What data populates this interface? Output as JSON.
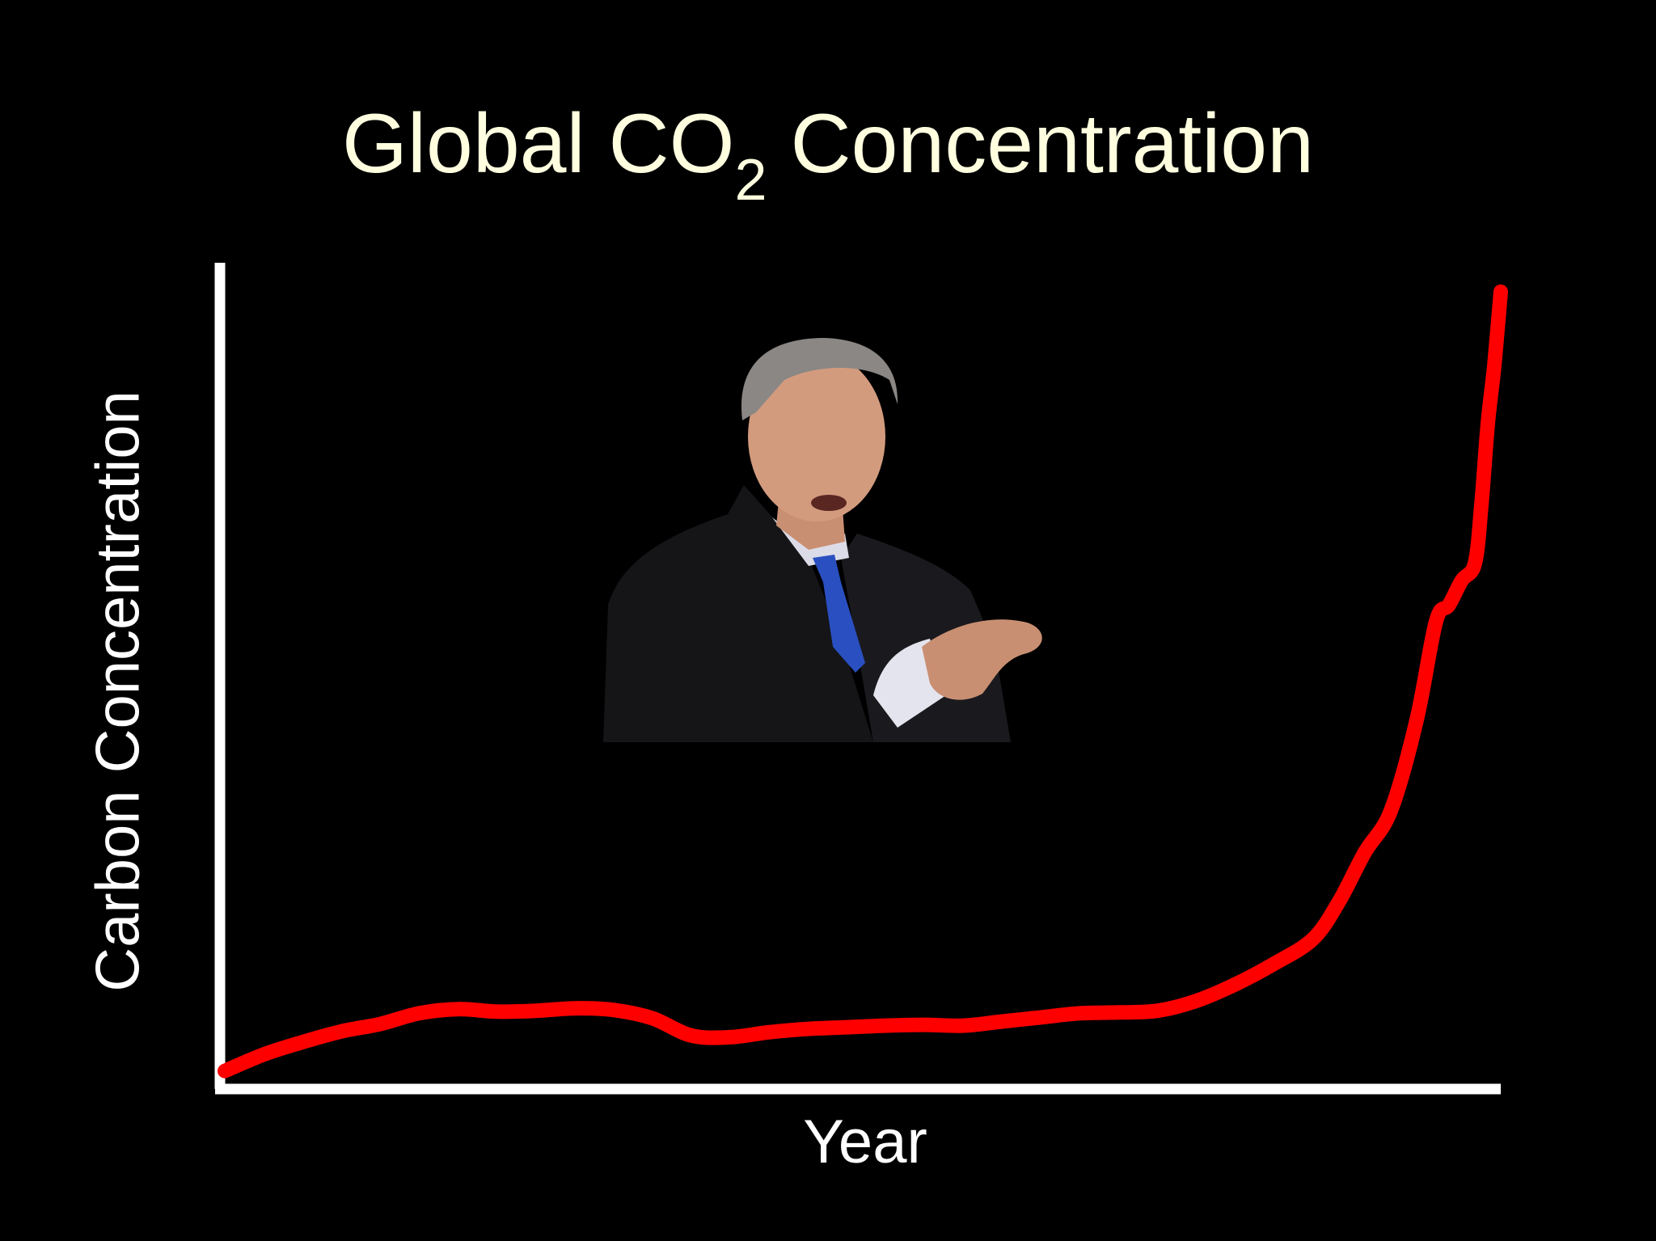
{
  "slide": {
    "title_main": "Global CO",
    "title_subscript": "2",
    "title_rest": " Concentration"
  },
  "chart_data": {
    "type": "line",
    "title": "Global CO2 Concentration",
    "xlabel": "Year",
    "ylabel": "Carbon Concentration",
    "grid": false,
    "legend": "none",
    "x": [
      0,
      3,
      6,
      9,
      12,
      15,
      18,
      21,
      24,
      27,
      30,
      33,
      36,
      39,
      42,
      45,
      48,
      51,
      54,
      57,
      60,
      63,
      66,
      69,
      72,
      75,
      78,
      81,
      84,
      86,
      88,
      90,
      92,
      93.5,
      94.5,
      95.5,
      96.5,
      97,
      97.5,
      98,
      98.5
    ],
    "series": [
      {
        "color": "#ff0000",
        "values": [
          1.5,
          3.5,
          5.0,
          6.3,
          7.2,
          8.5,
          9.0,
          8.7,
          8.8,
          9.1,
          8.9,
          7.9,
          5.8,
          5.6,
          6.2,
          6.6,
          6.8,
          7.0,
          7.1,
          7.0,
          7.5,
          8.0,
          8.5,
          8.6,
          8.8,
          10.0,
          12.0,
          14.5,
          17.5,
          22.0,
          28.0,
          33.0,
          44.0,
          56.0,
          58.0,
          61.0,
          63.0,
          70.0,
          80.0,
          87.0,
          96.0
        ]
      }
    ],
    "xlim": [
      0,
      100
    ],
    "ylim": [
      0,
      100
    ]
  },
  "image": {
    "subject": "speaker-photo"
  }
}
